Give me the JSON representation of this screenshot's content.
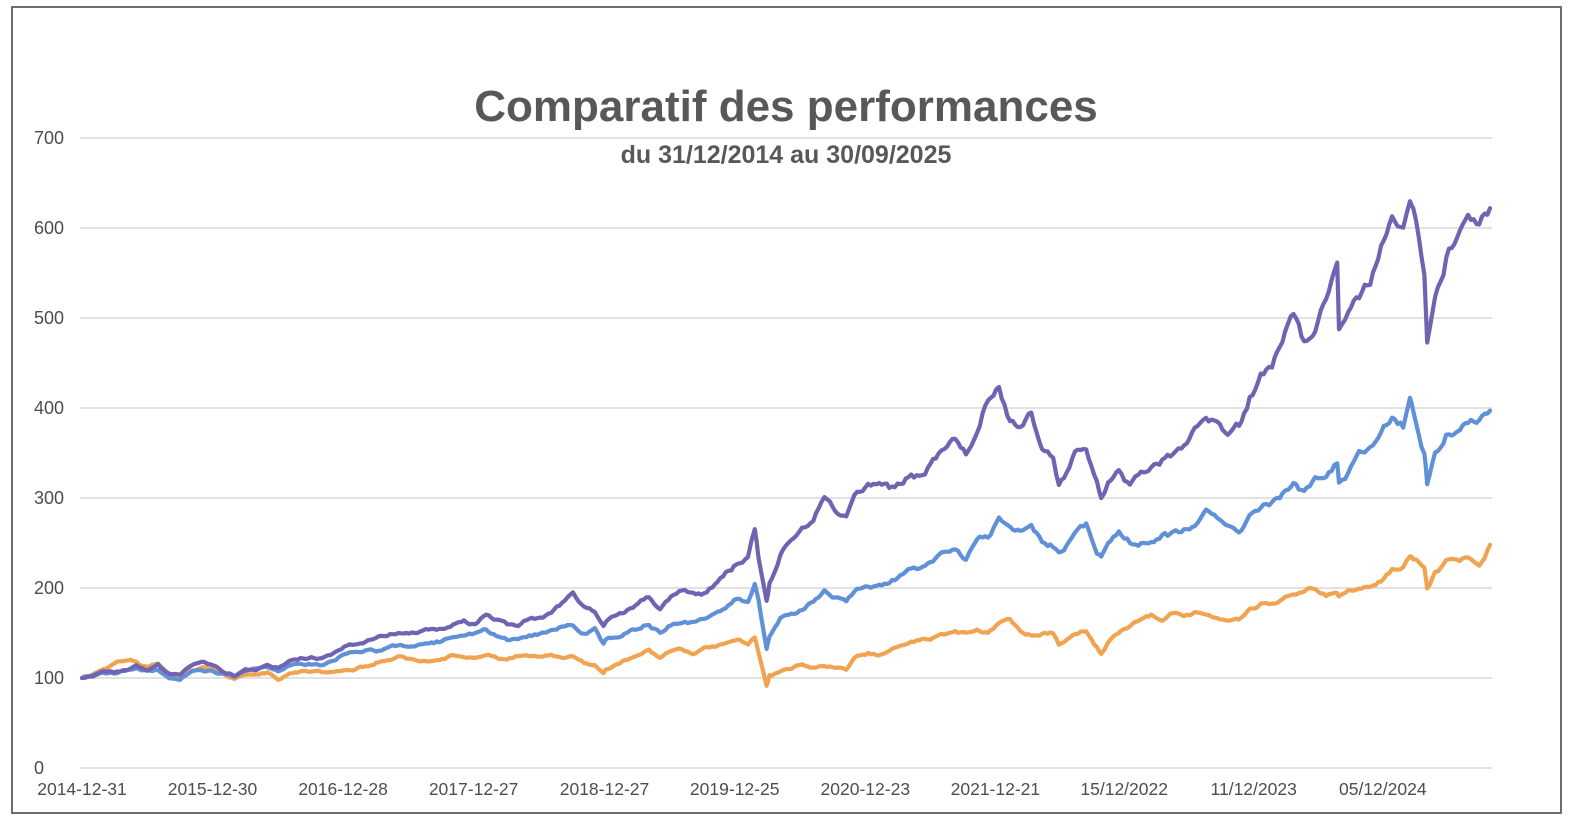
{
  "colors": {
    "purple_line": "#7063B2",
    "blue_line": "#6090D8",
    "orange_line": "#F0A452",
    "grid": "#D9D9D9",
    "frame": "#6E6E6E",
    "title_text": "#57585A",
    "axis_text": "#4D4D4D",
    "background": "#FFFFFF"
  },
  "chart_data": {
    "type": "line",
    "title": "Comparatif des performances",
    "subtitle": "du 31/12/2014 au 30/09/2025",
    "xlabel": "",
    "ylabel": "",
    "ylim": [
      0,
      700
    ],
    "yticks": [
      0,
      100,
      200,
      300,
      400,
      500,
      600,
      700
    ],
    "grid": "horizontal",
    "legend": "none",
    "x_start_date": "2014-12-31",
    "x_end_date": "2025-09-30",
    "xticks": [
      {
        "date": "2014-12-31",
        "label": "2014-12-31"
      },
      {
        "date": "2015-12-30",
        "label": "2015-12-30"
      },
      {
        "date": "2016-12-28",
        "label": "2016-12-28"
      },
      {
        "date": "2017-12-27",
        "label": "2017-12-27"
      },
      {
        "date": "2018-12-27",
        "label": "2018-12-27"
      },
      {
        "date": "2019-12-25",
        "label": "2019-12-25"
      },
      {
        "date": "2020-12-23",
        "label": "2020-12-23"
      },
      {
        "date": "2021-12-21",
        "label": "2021-12-21"
      },
      {
        "date": "2022-12-15",
        "label": "15/12/2022"
      },
      {
        "date": "2023-12-11",
        "label": "11/12/2023"
      },
      {
        "date": "2024-12-05",
        "label": "05/12/2024"
      }
    ],
    "dates": [
      "2014-12-31",
      "2015-01-31",
      "2015-02-28",
      "2015-03-31",
      "2015-04-30",
      "2015-05-31",
      "2015-06-30",
      "2015-07-31",
      "2015-08-31",
      "2015-09-30",
      "2015-10-31",
      "2015-11-30",
      "2015-12-31",
      "2016-01-31",
      "2016-02-29",
      "2016-03-31",
      "2016-04-30",
      "2016-05-31",
      "2016-06-30",
      "2016-07-31",
      "2016-08-31",
      "2016-09-30",
      "2016-10-31",
      "2016-11-30",
      "2016-12-31",
      "2017-01-31",
      "2017-02-28",
      "2017-03-31",
      "2017-04-30",
      "2017-05-31",
      "2017-06-30",
      "2017-07-31",
      "2017-08-31",
      "2017-09-30",
      "2017-10-31",
      "2017-11-30",
      "2017-12-31",
      "2018-01-31",
      "2018-02-28",
      "2018-03-31",
      "2018-04-30",
      "2018-05-31",
      "2018-06-30",
      "2018-07-31",
      "2018-08-31",
      "2018-09-30",
      "2018-10-31",
      "2018-11-30",
      "2018-12-24",
      "2018-12-31",
      "2019-01-31",
      "2019-02-28",
      "2019-03-31",
      "2019-04-30",
      "2019-05-31",
      "2019-06-30",
      "2019-07-31",
      "2019-08-31",
      "2019-09-30",
      "2019-10-31",
      "2019-11-30",
      "2019-12-31",
      "2020-01-31",
      "2020-02-19",
      "2020-02-29",
      "2020-03-23",
      "2020-03-31",
      "2020-04-30",
      "2020-05-31",
      "2020-06-30",
      "2020-07-31",
      "2020-08-31",
      "2020-09-30",
      "2020-10-31",
      "2020-11-30",
      "2020-12-31",
      "2021-01-31",
      "2021-02-28",
      "2021-03-31",
      "2021-04-30",
      "2021-05-31",
      "2021-06-30",
      "2021-07-31",
      "2021-08-31",
      "2021-09-30",
      "2021-10-31",
      "2021-11-30",
      "2021-12-31",
      "2022-01-31",
      "2022-02-28",
      "2022-03-31",
      "2022-04-30",
      "2022-05-31",
      "2022-06-16",
      "2022-06-30",
      "2022-07-31",
      "2022-08-31",
      "2022-09-30",
      "2022-10-12",
      "2022-10-31",
      "2022-11-30",
      "2022-12-31",
      "2023-01-31",
      "2023-02-28",
      "2023-03-31",
      "2023-04-30",
      "2023-05-31",
      "2023-06-30",
      "2023-07-31",
      "2023-08-31",
      "2023-09-30",
      "2023-10-31",
      "2023-11-30",
      "2023-12-31",
      "2024-01-31",
      "2024-02-29",
      "2024-03-31",
      "2024-04-30",
      "2024-05-31",
      "2024-06-30",
      "2024-07-31",
      "2024-08-05",
      "2024-08-31",
      "2024-09-30",
      "2024-10-31",
      "2024-11-30",
      "2024-12-31",
      "2025-01-31",
      "2025-02-19",
      "2025-02-28",
      "2025-03-31",
      "2025-04-08",
      "2025-04-30",
      "2025-05-31",
      "2025-06-30",
      "2025-07-31",
      "2025-08-31",
      "2025-09-30"
    ],
    "series": [
      {
        "name": "series-orange",
        "color": "#F0A452",
        "values": [
          100,
          104,
          110,
          115,
          120,
          118,
          112,
          116,
          105,
          100,
          110,
          112,
          110,
          104,
          99,
          104,
          106,
          107,
          100,
          105,
          107,
          107,
          107,
          108,
          111,
          111,
          113,
          117,
          121,
          123,
          121,
          120,
          119,
          123,
          126,
          124,
          125,
          128,
          123,
          120,
          124,
          125,
          123,
          125,
          123,
          125,
          117,
          116,
          108,
          111,
          116,
          121,
          124,
          130,
          122,
          130,
          130,
          128,
          132,
          134,
          138,
          141,
          138,
          146,
          130,
          90,
          102,
          106,
          110,
          115,
          112,
          115,
          112,
          108,
          124,
          128,
          126,
          130,
          136,
          140,
          143,
          146,
          148,
          151,
          148,
          154,
          152,
          160,
          164,
          152,
          148,
          150,
          150,
          138,
          142,
          148,
          152,
          134,
          128,
          140,
          152,
          156,
          164,
          168,
          166,
          172,
          168,
          172,
          174,
          170,
          168,
          164,
          174,
          181,
          184,
          190,
          198,
          194,
          200,
          194,
          196,
          192,
          198,
          200,
          202,
          210,
          222,
          228,
          236,
          232,
          225,
          198,
          215,
          228,
          226,
          232,
          228,
          248
        ]
      },
      {
        "name": "series-blue",
        "color": "#6090D8",
        "values": [
          100,
          101,
          106,
          105,
          107,
          109,
          107,
          110,
          102,
          100,
          108,
          109,
          107,
          104,
          102,
          108,
          109,
          111,
          108,
          115,
          117,
          117,
          115,
          120,
          126,
          128,
          131,
          131,
          133,
          135,
          136,
          138,
          139,
          141,
          144,
          147,
          148,
          154,
          147,
          143,
          144,
          148,
          149,
          154,
          159,
          162,
          151,
          154,
          137,
          141,
          147,
          152,
          155,
          161,
          151,
          161,
          164,
          162,
          165,
          169,
          175,
          186,
          186,
          205,
          188,
          134,
          148,
          166,
          173,
          176,
          186,
          198,
          190,
          185,
          200,
          205,
          204,
          208,
          214,
          222,
          224,
          230,
          236,
          244,
          234,
          250,
          256,
          278,
          270,
          262,
          274,
          252,
          248,
          238,
          244,
          262,
          268,
          238,
          232,
          246,
          258,
          250,
          252,
          248,
          256,
          258,
          262,
          272,
          282,
          272,
          262,
          258,
          276,
          286,
          292,
          302,
          315,
          305,
          320,
          330,
          342,
          318,
          330,
          348,
          360,
          378,
          388,
          380,
          408,
          398,
          352,
          318,
          345,
          368,
          378,
          388,
          384,
          397
        ]
      },
      {
        "name": "series-purple",
        "color": "#7063B2",
        "values": [
          100,
          102,
          109,
          107,
          110,
          113,
          109,
          115,
          104,
          103,
          114,
          116,
          113,
          106,
          103,
          110,
          109,
          113,
          111,
          119,
          122,
          124,
          123,
          128,
          134,
          138,
          141,
          143,
          147,
          151,
          149,
          153,
          155,
          156,
          160,
          162,
          160,
          169,
          163,
          158,
          159,
          168,
          168,
          172,
          182,
          192,
          176,
          172,
          155,
          162,
          168,
          175,
          181,
          190,
          178,
          190,
          196,
          192,
          194,
          204,
          215,
          226,
          232,
          265,
          235,
          189,
          207,
          238,
          252,
          262,
          278,
          303,
          288,
          282,
          308,
          313,
          312,
          308,
          316,
          330,
          326,
          340,
          350,
          364,
          348,
          372,
          410,
          430,
          388,
          375,
          398,
          356,
          350,
          318,
          326,
          358,
          362,
          322,
          303,
          318,
          332,
          312,
          322,
          332,
          342,
          348,
          358,
          382,
          398,
          382,
          370,
          378,
          412,
          437,
          448,
          472,
          500,
          470,
          495,
          530,
          565,
          482,
          505,
          525,
          545,
          580,
          618,
          598,
          632,
          615,
          545,
          464,
          520,
          568,
          590,
          606,
          598,
          622
        ]
      }
    ]
  }
}
